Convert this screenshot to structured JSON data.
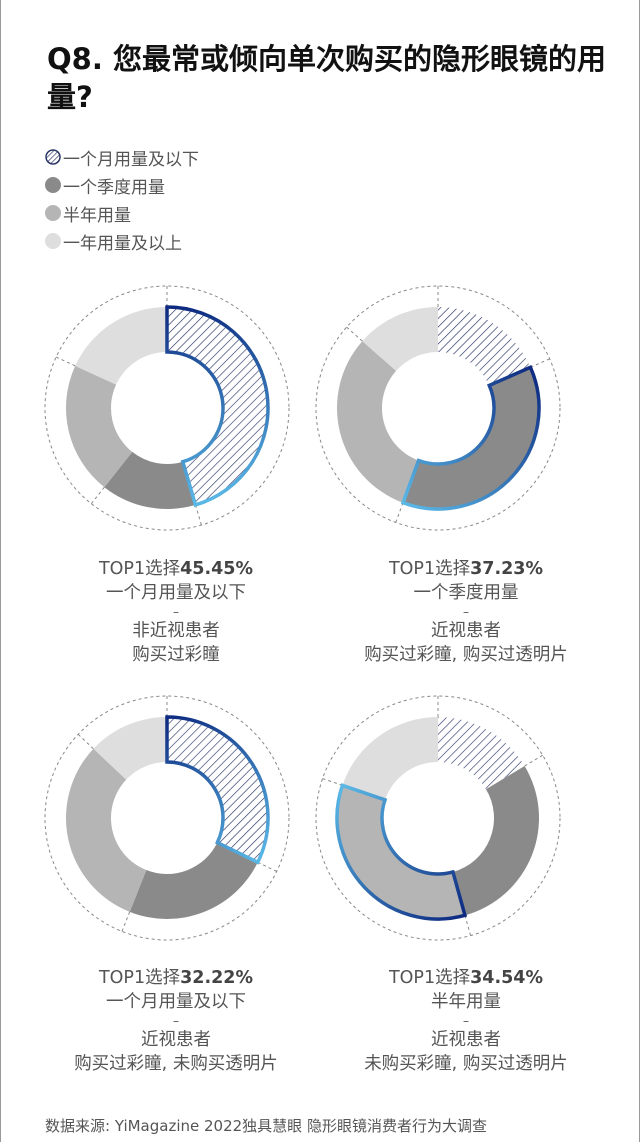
{
  "title": "Q8. 您最常或倾向单次购买的隐形眼镜的用量?",
  "footer": "数据来源: YiMagazine 2022独具慧眼 隐形眼镜消费者行为大调查",
  "colors": {
    "monthly_hatch": "#2a3566",
    "quarterly": "#8a8a8a",
    "half_year": "#b5b5b5",
    "year": "#dedede",
    "highlight_dark": "#0d2a80",
    "highlight_light": "#5ab8e6"
  },
  "chart_data": {
    "type": "pie",
    "legend_placement": "top-left",
    "categories": [
      "一个月用量及以下",
      "一个季度用量",
      "半年用量",
      "一年用量及以上"
    ],
    "charts": [
      {
        "values": [
          45.45,
          15.2,
          21.2,
          18.15
        ],
        "top_index": 0,
        "top_prefix": "TOP1选择",
        "top_value": "45.45%",
        "top_category": "一个月用量及以下",
        "sep": "–",
        "group": "非近视患者",
        "condition": "购买过彩瞳"
      },
      {
        "values": [
          18.4,
          37.23,
          30.9,
          13.47
        ],
        "top_index": 1,
        "top_prefix": "TOP1选择",
        "top_value": "37.23%",
        "top_category": "一个季度用量",
        "sep": "–",
        "group": "近视患者",
        "condition": "购买过彩瞳, 购买过透明片"
      },
      {
        "values": [
          32.22,
          23.8,
          31.0,
          12.98
        ],
        "top_index": 0,
        "top_prefix": "TOP1选择",
        "top_value": "32.22%",
        "top_category": "一个月用量及以下",
        "sep": "–",
        "group": "近视患者",
        "condition": "购买过彩瞳, 未购买透明片"
      },
      {
        "values": [
          16.4,
          29.3,
          34.54,
          19.76
        ],
        "top_index": 2,
        "top_prefix": "TOP1选择",
        "top_value": "34.54%",
        "top_category": "半年用量",
        "sep": "–",
        "group": "近视患者",
        "condition": "未购买彩瞳, 购买过透明片"
      }
    ]
  }
}
